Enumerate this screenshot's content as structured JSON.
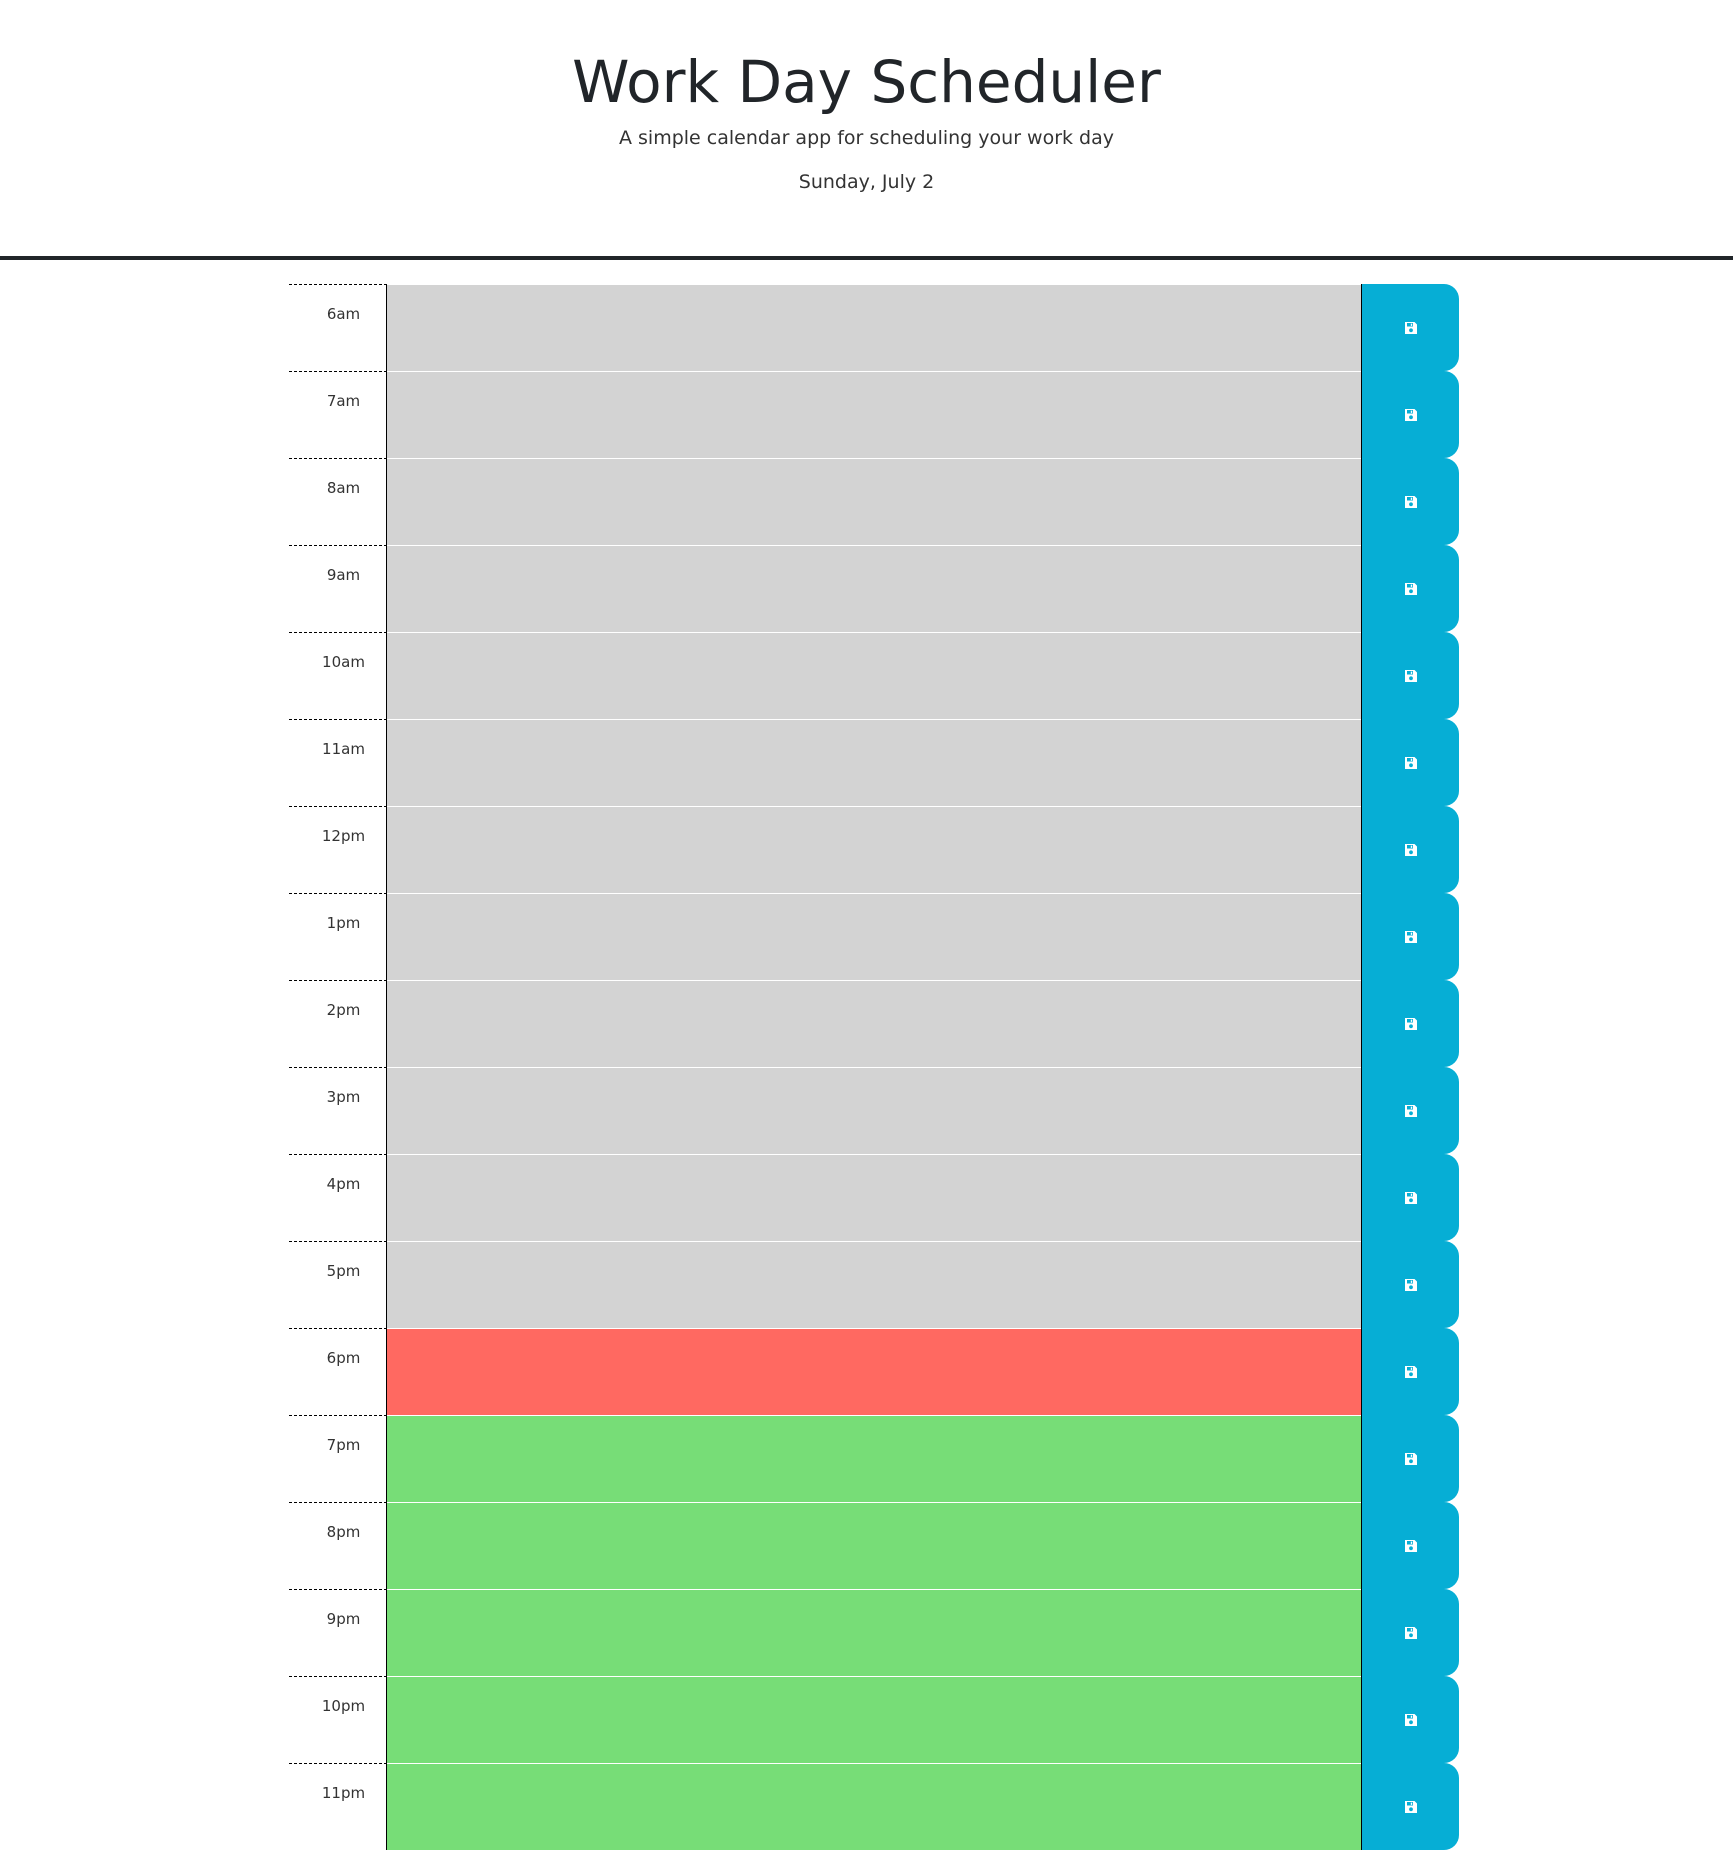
{
  "header": {
    "title": "Work Day Scheduler",
    "lead": "A simple calendar app for scheduling your work day",
    "current_day": "Sunday, July 2"
  },
  "colors": {
    "past": "#d3d3d3",
    "present": "#ff6961",
    "future": "#77dd77",
    "save_button": "#06aed5"
  },
  "time_blocks": [
    {
      "hour": "6am",
      "state": "past",
      "text": ""
    },
    {
      "hour": "7am",
      "state": "past",
      "text": ""
    },
    {
      "hour": "8am",
      "state": "past",
      "text": ""
    },
    {
      "hour": "9am",
      "state": "past",
      "text": ""
    },
    {
      "hour": "10am",
      "state": "past",
      "text": ""
    },
    {
      "hour": "11am",
      "state": "past",
      "text": ""
    },
    {
      "hour": "12pm",
      "state": "past",
      "text": ""
    },
    {
      "hour": "1pm",
      "state": "past",
      "text": ""
    },
    {
      "hour": "2pm",
      "state": "past",
      "text": ""
    },
    {
      "hour": "3pm",
      "state": "past",
      "text": ""
    },
    {
      "hour": "4pm",
      "state": "past",
      "text": ""
    },
    {
      "hour": "5pm",
      "state": "past",
      "text": ""
    },
    {
      "hour": "6pm",
      "state": "present",
      "text": ""
    },
    {
      "hour": "7pm",
      "state": "future",
      "text": ""
    },
    {
      "hour": "8pm",
      "state": "future",
      "text": ""
    },
    {
      "hour": "9pm",
      "state": "future",
      "text": ""
    },
    {
      "hour": "10pm",
      "state": "future",
      "text": ""
    },
    {
      "hour": "11pm",
      "state": "future",
      "text": ""
    }
  ],
  "icons": {
    "save": "floppy-disk-icon"
  }
}
